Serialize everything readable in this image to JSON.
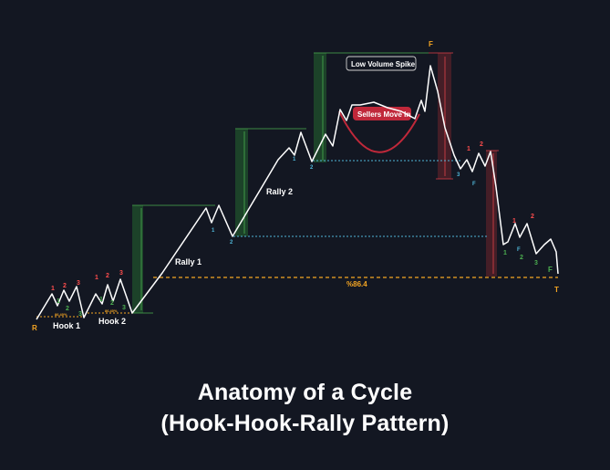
{
  "title_line1": "Anatomy of a Cycle",
  "title_line2": "(Hook-Hook-Rally Pattern)",
  "colors": {
    "background": "#131722",
    "price_line": "#ffffff",
    "green_zone": "#1f4a2a",
    "green_border": "#4caf50",
    "red_zone": "#4a1f28",
    "red_border": "#e0404a",
    "blue_dotted": "#4fb6d8",
    "orange": "#f5a623",
    "red_label": "#ff4d4d",
    "green_label": "#4caf50",
    "cyan_label": "#4fb6d8",
    "callout_red": "#c0283a"
  },
  "labels": {
    "hook1": "Hook 1",
    "hook2": "Hook 2",
    "rally1": "Rally 1",
    "rally2": "Rally 2",
    "low_volume_spike": "Low Volume Spike",
    "sellers_move_in": "Sellers Move In",
    "fib_level": "%86.4",
    "small_fib": "86.40%",
    "start_marker": "R",
    "top_marker": "F",
    "end_marker": "T",
    "low_f": "F",
    "final_f": "F",
    "n1": "1",
    "n2": "2",
    "n3": "3"
  }
}
